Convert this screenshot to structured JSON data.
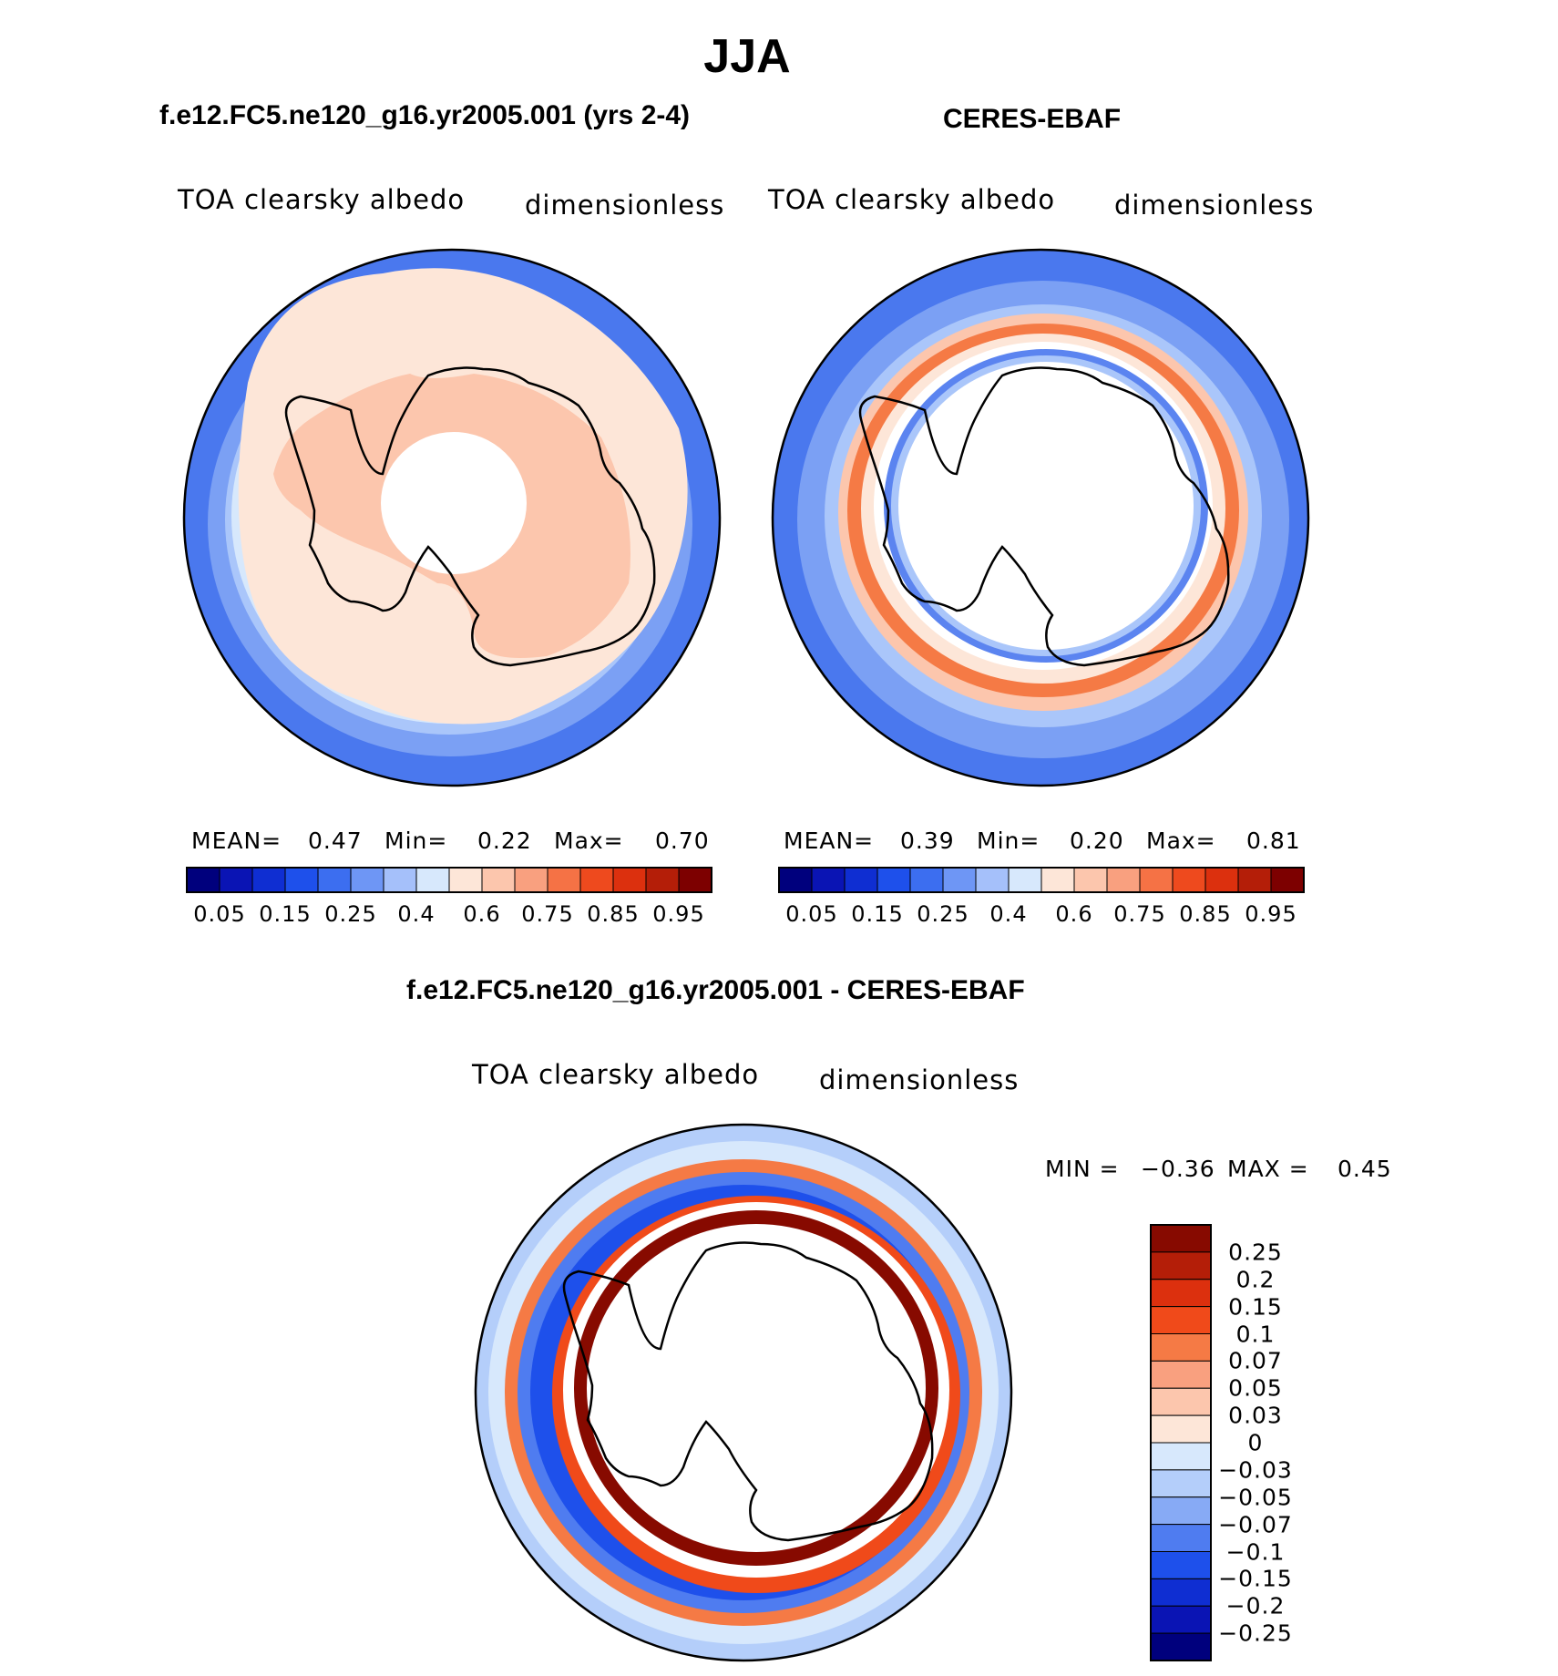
{
  "title": "JJA",
  "panels": {
    "model": {
      "title": "f.e12.FC5.ne120_g16.yr2005.001 (yrs 2-4)",
      "variable": "TOA clearsky albedo",
      "units": "dimensionless",
      "mean_label": "MEAN=",
      "mean_value": "0.47",
      "min_label": "Min=",
      "min_value": "0.22",
      "max_label": "Max=",
      "max_value": "0.70"
    },
    "obs": {
      "title": "CERES-EBAF",
      "variable": "TOA clearsky albedo",
      "units": "dimensionless",
      "mean_label": "MEAN=",
      "mean_value": "0.39",
      "min_label": "Min=",
      "min_value": "0.20",
      "max_label": "Max=",
      "max_value": "0.81"
    },
    "diff": {
      "title": "f.e12.FC5.ne120_g16.yr2005.001 - CERES-EBAF",
      "variable": "TOA clearsky albedo",
      "units": "dimensionless",
      "min_label": "MIN =",
      "min_value": "−0.36",
      "max_label": "MAX =",
      "max_value": "0.45"
    }
  },
  "colorbar_abs": {
    "tick_labels": [
      "0.05",
      "0.15",
      "0.25",
      "0.4",
      "0.6",
      "0.75",
      "0.85",
      "0.95"
    ],
    "colors": [
      "#00007d",
      "#0a14b4",
      "#0f2ed2",
      "#1e50eb",
      "#3c6ef0",
      "#6e96f5",
      "#a5c0fa",
      "#d7e8fc",
      "#fde6d8",
      "#fcc6ad",
      "#f9a07f",
      "#f57245",
      "#ee4a1e",
      "#dc300e",
      "#b41e08",
      "#7d0000"
    ]
  },
  "colorbar_diff": {
    "tick_labels": [
      "0.25",
      "0.2",
      "0.15",
      "0.1",
      "0.07",
      "0.05",
      "0.03",
      "0",
      "−0.03",
      "−0.05",
      "−0.07",
      "−0.1",
      "−0.15",
      "−0.2",
      "−0.25"
    ],
    "colors": [
      "#870a00",
      "#b41e08",
      "#dc300e",
      "#f04a1a",
      "#f57a45",
      "#f9a07f",
      "#fcc6ad",
      "#fde6d8",
      "#d7e8fc",
      "#b4cefa",
      "#87aaf5",
      "#4f7cf0",
      "#1e50eb",
      "#0f2ed2",
      "#0a14b4",
      "#00007d"
    ]
  }
}
